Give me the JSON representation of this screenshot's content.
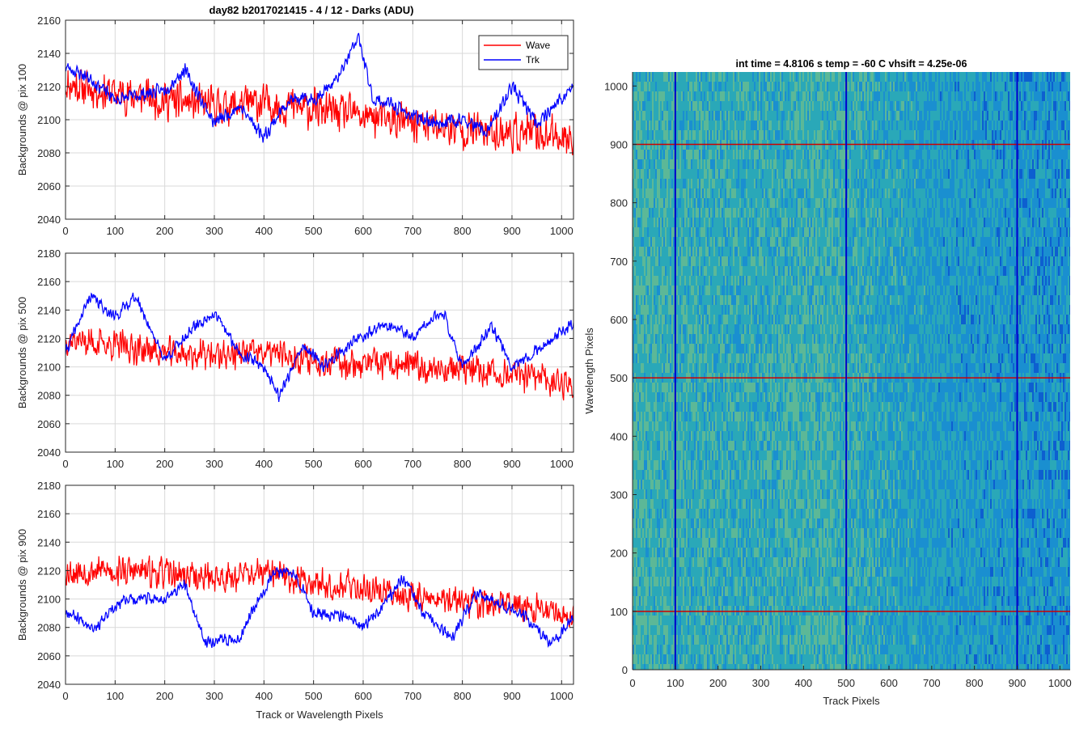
{
  "chart_data": [
    {
      "type": "line",
      "title": "day82 b2017021415 - 4 / 12 - Darks (ADU)",
      "xlabel": "",
      "ylabel": "Backgrounds @ pix 100",
      "xlim": [
        0,
        1024
      ],
      "ylim": [
        2040,
        2160
      ],
      "xticks": [
        0,
        100,
        200,
        300,
        400,
        500,
        600,
        700,
        800,
        900,
        1000
      ],
      "yticks": [
        2040,
        2060,
        2080,
        2100,
        2120,
        2140,
        2160
      ],
      "grid": true,
      "legend": "top-right",
      "series": [
        {
          "name": "Wave",
          "color": "#ff0000",
          "trend": [
            [
              0,
              2122
            ],
            [
              100,
              2116
            ],
            [
              200,
              2112
            ],
            [
              300,
              2108
            ],
            [
              400,
              2110
            ],
            [
              500,
              2106
            ],
            [
              600,
              2102
            ],
            [
              700,
              2098
            ],
            [
              800,
              2094
            ],
            [
              900,
              2092
            ],
            [
              1024,
              2090
            ]
          ],
          "noise": 14,
          "seed": 11
        },
        {
          "name": "Trk",
          "color": "#0000ff",
          "trend": [
            [
              0,
              2132
            ],
            [
              50,
              2125
            ],
            [
              100,
              2112
            ],
            [
              150,
              2115
            ],
            [
              200,
              2118
            ],
            [
              240,
              2130
            ],
            [
              300,
              2098
            ],
            [
              350,
              2108
            ],
            [
              400,
              2090
            ],
            [
              450,
              2112
            ],
            [
              500,
              2112
            ],
            [
              550,
              2125
            ],
            [
              590,
              2150
            ],
            [
              620,
              2112
            ],
            [
              650,
              2110
            ],
            [
              700,
              2102
            ],
            [
              750,
              2098
            ],
            [
              800,
              2100
            ],
            [
              850,
              2092
            ],
            [
              900,
              2120
            ],
            [
              950,
              2098
            ],
            [
              1024,
              2120
            ]
          ],
          "noise": 5,
          "seed": 23
        }
      ]
    },
    {
      "type": "line",
      "title": "",
      "xlabel": "",
      "ylabel": "Backgrounds @ pix 500",
      "xlim": [
        0,
        1024
      ],
      "ylim": [
        2040,
        2180
      ],
      "xticks": [
        0,
        100,
        200,
        300,
        400,
        500,
        600,
        700,
        800,
        900,
        1000
      ],
      "yticks": [
        2040,
        2060,
        2080,
        2100,
        2120,
        2140,
        2160,
        2180
      ],
      "grid": true,
      "series": [
        {
          "name": "Wave",
          "color": "#ff0000",
          "trend": [
            [
              0,
              2120
            ],
            [
              100,
              2115
            ],
            [
              200,
              2110
            ],
            [
              300,
              2108
            ],
            [
              400,
              2110
            ],
            [
              500,
              2105
            ],
            [
              600,
              2102
            ],
            [
              700,
              2100
            ],
            [
              800,
              2098
            ],
            [
              900,
              2094
            ],
            [
              1024,
              2088
            ]
          ],
          "noise": 13,
          "seed": 37
        },
        {
          "name": "Trk",
          "color": "#0000ff",
          "trend": [
            [
              0,
              2110
            ],
            [
              50,
              2150
            ],
            [
              100,
              2135
            ],
            [
              140,
              2150
            ],
            [
              170,
              2128
            ],
            [
              200,
              2105
            ],
            [
              250,
              2125
            ],
            [
              300,
              2138
            ],
            [
              350,
              2110
            ],
            [
              400,
              2100
            ],
            [
              430,
              2080
            ],
            [
              480,
              2115
            ],
            [
              520,
              2100
            ],
            [
              580,
              2118
            ],
            [
              650,
              2130
            ],
            [
              700,
              2120
            ],
            [
              760,
              2140
            ],
            [
              800,
              2100
            ],
            [
              860,
              2128
            ],
            [
              900,
              2100
            ],
            [
              950,
              2112
            ],
            [
              1024,
              2130
            ]
          ],
          "noise": 5,
          "seed": 41
        }
      ]
    },
    {
      "type": "line",
      "title": "",
      "xlabel": "Track or Wavelength Pixels",
      "ylabel": "Backgrounds @ pix 900",
      "xlim": [
        0,
        1024
      ],
      "ylim": [
        2040,
        2180
      ],
      "xticks": [
        0,
        100,
        200,
        300,
        400,
        500,
        600,
        700,
        800,
        900,
        1000
      ],
      "yticks": [
        2040,
        2060,
        2080,
        2100,
        2120,
        2140,
        2160,
        2180
      ],
      "grid": true,
      "series": [
        {
          "name": "Wave",
          "color": "#ff0000",
          "trend": [
            [
              0,
              2120
            ],
            [
              100,
              2120
            ],
            [
              200,
              2118
            ],
            [
              300,
              2115
            ],
            [
              400,
              2118
            ],
            [
              500,
              2112
            ],
            [
              600,
              2108
            ],
            [
              700,
              2102
            ],
            [
              800,
              2098
            ],
            [
              900,
              2095
            ],
            [
              1024,
              2090
            ]
          ],
          "noise": 13,
          "seed": 53
        },
        {
          "name": "Trk",
          "color": "#0000ff",
          "trend": [
            [
              0,
              2092
            ],
            [
              60,
              2080
            ],
            [
              120,
              2100
            ],
            [
              200,
              2100
            ],
            [
              240,
              2110
            ],
            [
              280,
              2070
            ],
            [
              350,
              2072
            ],
            [
              380,
              2095
            ],
            [
              420,
              2118
            ],
            [
              460,
              2120
            ],
            [
              500,
              2090
            ],
            [
              560,
              2088
            ],
            [
              600,
              2080
            ],
            [
              650,
              2100
            ],
            [
              680,
              2115
            ],
            [
              720,
              2090
            ],
            [
              780,
              2072
            ],
            [
              830,
              2105
            ],
            [
              870,
              2098
            ],
            [
              920,
              2090
            ],
            [
              980,
              2068
            ],
            [
              1024,
              2088
            ]
          ],
          "noise": 5,
          "seed": 67
        }
      ]
    },
    {
      "type": "heatmap",
      "title": "int time = 4.8106 s    temp = -60 C    vhsift = 4.25e-06",
      "xlabel": "Track Pixels",
      "ylabel": "Wavelength Pixels",
      "xlim": [
        0,
        1024
      ],
      "ylim": [
        0,
        1024
      ],
      "xticks": [
        0,
        100,
        200,
        300,
        400,
        500,
        600,
        700,
        800,
        900,
        1000
      ],
      "yticks": [
        0,
        100,
        200,
        300,
        400,
        500,
        600,
        700,
        800,
        900,
        1000
      ],
      "colormap": [
        "#0d5fd0",
        "#1a8fd0",
        "#2aa8b8",
        "#5cb897",
        "#a7c06a"
      ],
      "marker_lines": {
        "vertical": {
          "x": [
            100,
            500,
            900
          ],
          "color": "#0000cc"
        },
        "horizontal": {
          "y": [
            100,
            500,
            900
          ],
          "color": "#cc0000"
        }
      }
    }
  ]
}
